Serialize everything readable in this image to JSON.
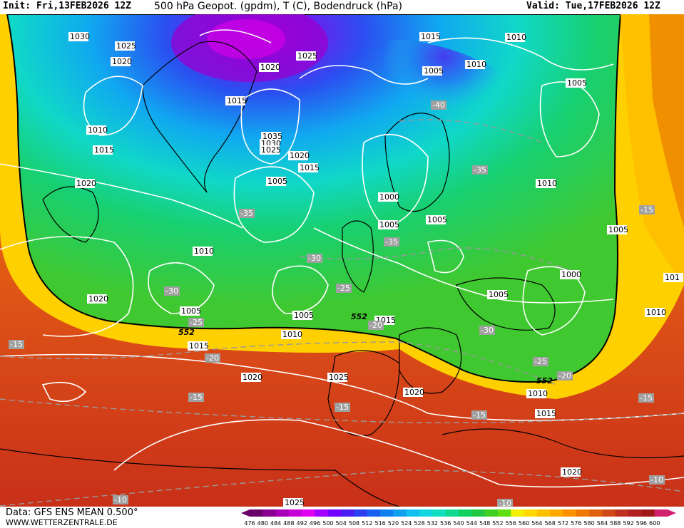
{
  "header": {
    "init": "Init: Fri,13FEB2026 12Z",
    "title": "500 hPa Geopot. (gpdm), T (C), Bodendruck (hPa)",
    "valid": "Valid: Tue,17FEB2026 12Z"
  },
  "footer": {
    "data": "Data: GFS ENS MEAN 0.500°",
    "site": "WWW.WETTERZENTRALE.DE"
  },
  "legend": {
    "values": [
      "476",
      "480",
      "484",
      "488",
      "492",
      "496",
      "500",
      "504",
      "508",
      "512",
      "516",
      "520",
      "524",
      "528",
      "532",
      "536",
      "540",
      "544",
      "548",
      "552",
      "556",
      "560",
      "564",
      "568",
      "572",
      "576",
      "580",
      "584",
      "588",
      "592",
      "596",
      "600"
    ],
    "colors": [
      "#6a006a",
      "#8a0090",
      "#a800b8",
      "#c800d8",
      "#e000f0",
      "#a000ff",
      "#7000ff",
      "#4a1cf0",
      "#2a40f0",
      "#1a60f0",
      "#1080f0",
      "#10a0f0",
      "#10c0f0",
      "#10d8e0",
      "#10e0c0",
      "#10d890",
      "#10d060",
      "#20c840",
      "#40d020",
      "#60e010",
      "#f0f000",
      "#ffd800",
      "#ffc000",
      "#ffa800",
      "#ff9000",
      "#f07800",
      "#e06010",
      "#d04818",
      "#c03020",
      "#b02020",
      "#a01818",
      "#d02070"
    ]
  },
  "map": {
    "contour_552_label": "552",
    "pressure_labels": [
      {
        "t": "1020",
        "k": "p1"
      },
      {
        "t": "1030",
        "k": "p2"
      },
      {
        "t": "1025",
        "k": "p3"
      },
      {
        "t": "1020",
        "k": "p4"
      },
      {
        "t": "1020",
        "k": "p5"
      },
      {
        "t": "1025",
        "k": "p6"
      },
      {
        "t": "1015",
        "k": "p7"
      },
      {
        "t": "1015",
        "k": "p8"
      },
      {
        "t": "1010",
        "k": "p9"
      },
      {
        "t": "1005",
        "k": "p10"
      },
      {
        "t": "1010",
        "k": "p11"
      },
      {
        "t": "1005",
        "k": "p12"
      },
      {
        "t": "1010",
        "k": "p13"
      },
      {
        "t": "1015",
        "k": "p14"
      },
      {
        "t": "1035",
        "k": "p15"
      },
      {
        "t": "1030",
        "k": "p16"
      },
      {
        "t": "1025",
        "k": "p17"
      },
      {
        "t": "1020",
        "k": "p18"
      },
      {
        "t": "1015",
        "k": "p19"
      },
      {
        "t": "1020",
        "k": "p20"
      },
      {
        "t": "1005",
        "k": "p21"
      },
      {
        "t": "1000",
        "k": "p22"
      },
      {
        "t": "1005",
        "k": "p23"
      },
      {
        "t": "1005",
        "k": "p24"
      },
      {
        "t": "1010",
        "k": "p25"
      },
      {
        "t": "1010",
        "k": "p26"
      },
      {
        "t": "1005",
        "k": "p27"
      },
      {
        "t": "1020",
        "k": "p28"
      },
      {
        "t": "1005",
        "k": "p29"
      },
      {
        "t": "1010",
        "k": "p30"
      },
      {
        "t": "1005",
        "k": "p31"
      },
      {
        "t": "1015",
        "k": "p32"
      },
      {
        "t": "1000",
        "k": "p33"
      },
      {
        "t": "1005",
        "k": "p34"
      },
      {
        "t": "1010",
        "k": "p35"
      },
      {
        "t": "101",
        "k": "p36"
      },
      {
        "t": "1015",
        "k": "p37"
      },
      {
        "t": "1020",
        "k": "p38"
      },
      {
        "t": "1025",
        "k": "p39"
      },
      {
        "t": "1020",
        "k": "p40"
      },
      {
        "t": "1010",
        "k": "p41"
      },
      {
        "t": "1015",
        "k": "p42"
      },
      {
        "t": "1020",
        "k": "p43"
      },
      {
        "t": "1025",
        "k": "p44"
      }
    ],
    "temp_labels": [
      {
        "t": "-40",
        "k": "t1"
      },
      {
        "t": "-35",
        "k": "t2"
      },
      {
        "t": "-35",
        "k": "t3"
      },
      {
        "t": "-30",
        "k": "t4"
      },
      {
        "t": "-35",
        "k": "t5"
      },
      {
        "t": "-30",
        "k": "t6"
      },
      {
        "t": "-25",
        "k": "t7"
      },
      {
        "t": "-25",
        "k": "t8"
      },
      {
        "t": "-20",
        "k": "t9"
      },
      {
        "t": "-30",
        "k": "t10"
      },
      {
        "t": "-25",
        "k": "t11"
      },
      {
        "t": "-20",
        "k": "t12"
      },
      {
        "t": "-15",
        "k": "t13"
      },
      {
        "t": "-15",
        "k": "t14"
      },
      {
        "t": "-15",
        "k": "t15"
      },
      {
        "t": "-15",
        "k": "t16"
      },
      {
        "t": "-15",
        "k": "t17"
      },
      {
        "t": "-15",
        "k": "t18"
      },
      {
        "t": "-10",
        "k": "t19"
      },
      {
        "t": "-10",
        "k": "t20"
      },
      {
        "t": "-10",
        "k": "t21"
      },
      {
        "t": "-20",
        "k": "t22"
      }
    ]
  }
}
